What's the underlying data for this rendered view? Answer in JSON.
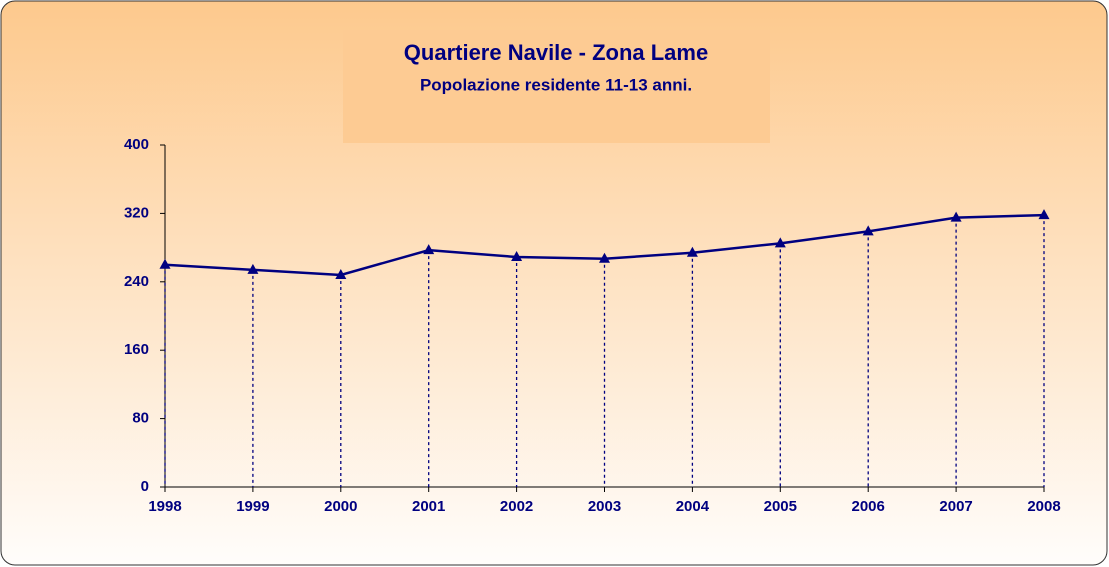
{
  "chart_data": {
    "type": "line",
    "title": "Quartiere Navile - Zona Lame",
    "subtitle": "Popolazione residente 11-13 anni.",
    "categories": [
      "1998",
      "1999",
      "2000",
      "2001",
      "2002",
      "2003",
      "2004",
      "2005",
      "2006",
      "2007",
      "2008"
    ],
    "values": [
      260,
      254,
      248,
      277,
      269,
      267,
      274,
      285,
      299,
      315,
      318
    ],
    "color": "#000080",
    "ylim": [
      0,
      400
    ],
    "yticks": [
      0,
      80,
      160,
      240,
      320,
      400
    ],
    "drop_lines": true
  }
}
